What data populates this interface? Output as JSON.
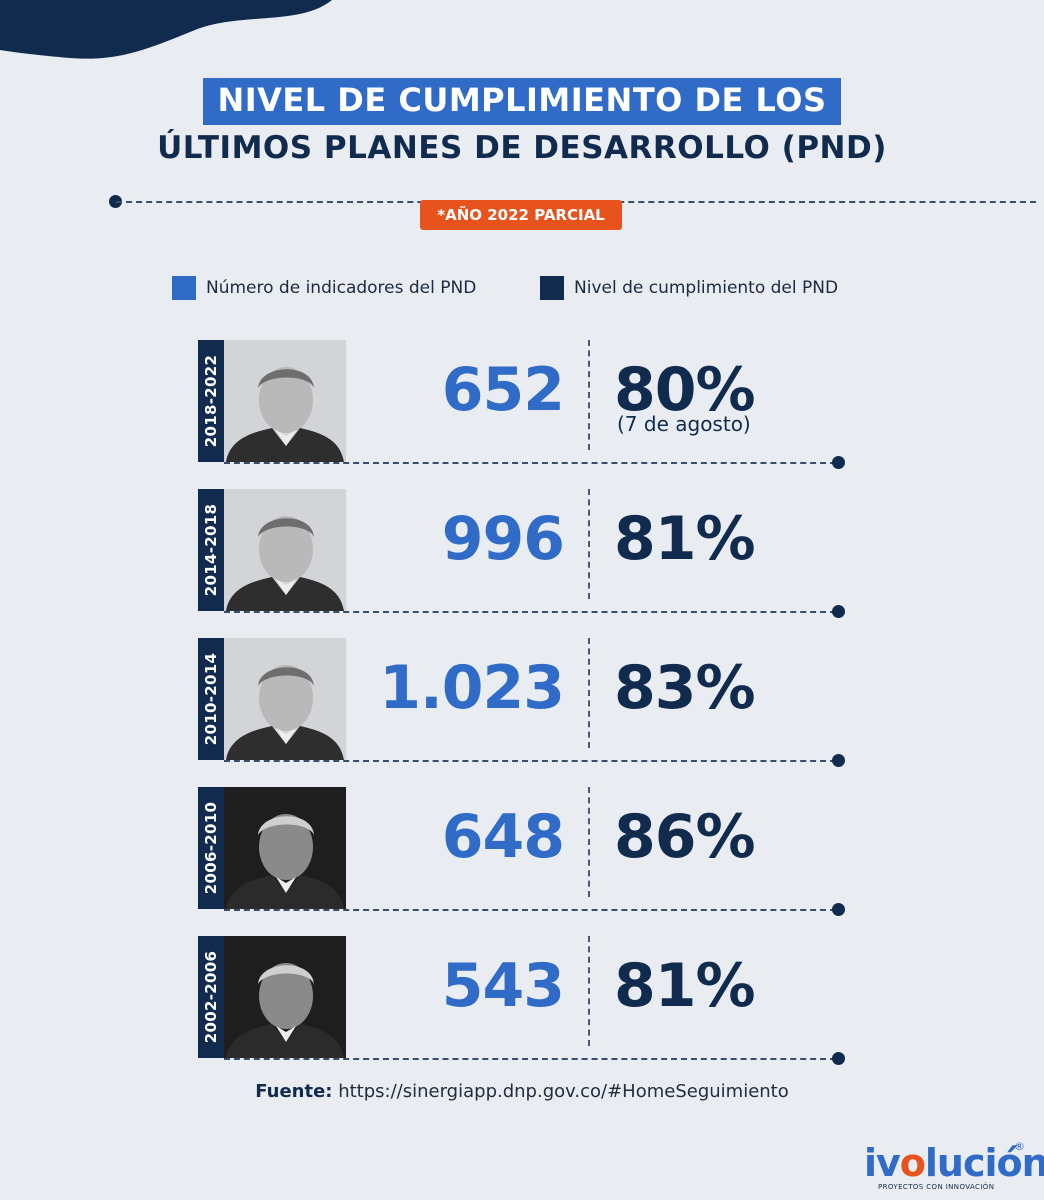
{
  "title": {
    "line1": "NIVEL DE CUMPLIMIENTO DE LOS",
    "line2": "ÚLTIMOS PLANES DE DESARROLLO (PND)"
  },
  "badge": "*AÑO 2022 PARCIAL",
  "colors": {
    "indicators": "#2f6bc7",
    "compliance": "#112b4f",
    "badge": "#e8531d"
  },
  "chart_data": {
    "type": "table",
    "legend": [
      "Número de indicadores del PND",
      "Nivel de cumplimiento del PND"
    ],
    "rows": [
      {
        "period": "2018-2022",
        "indicators": "652",
        "compliance": "80%",
        "note": "(7 de agosto)",
        "photo": "portrait-icon",
        "dark": false
      },
      {
        "period": "2014-2018",
        "indicators": "996",
        "compliance": "81%",
        "note": "",
        "photo": "portrait-icon",
        "dark": false
      },
      {
        "period": "2010-2014",
        "indicators": "1.023",
        "compliance": "83%",
        "note": "",
        "photo": "portrait-icon",
        "dark": false
      },
      {
        "period": "2006-2010",
        "indicators": "648",
        "compliance": "86%",
        "note": "",
        "photo": "portrait-icon",
        "dark": true
      },
      {
        "period": "2002-2006",
        "indicators": "543",
        "compliance": "81%",
        "note": "",
        "photo": "portrait-icon",
        "dark": true
      }
    ]
  },
  "source": {
    "label": "Fuente:",
    "url": "https://sinergiapp.dnp.gov.co/#HomeSeguimiento"
  },
  "logo": {
    "word_start": "iv",
    "word_o": "o",
    "word_end": "lución",
    "tagline": "PROYECTOS CON INNOVACIÓN",
    "reg": "®"
  }
}
